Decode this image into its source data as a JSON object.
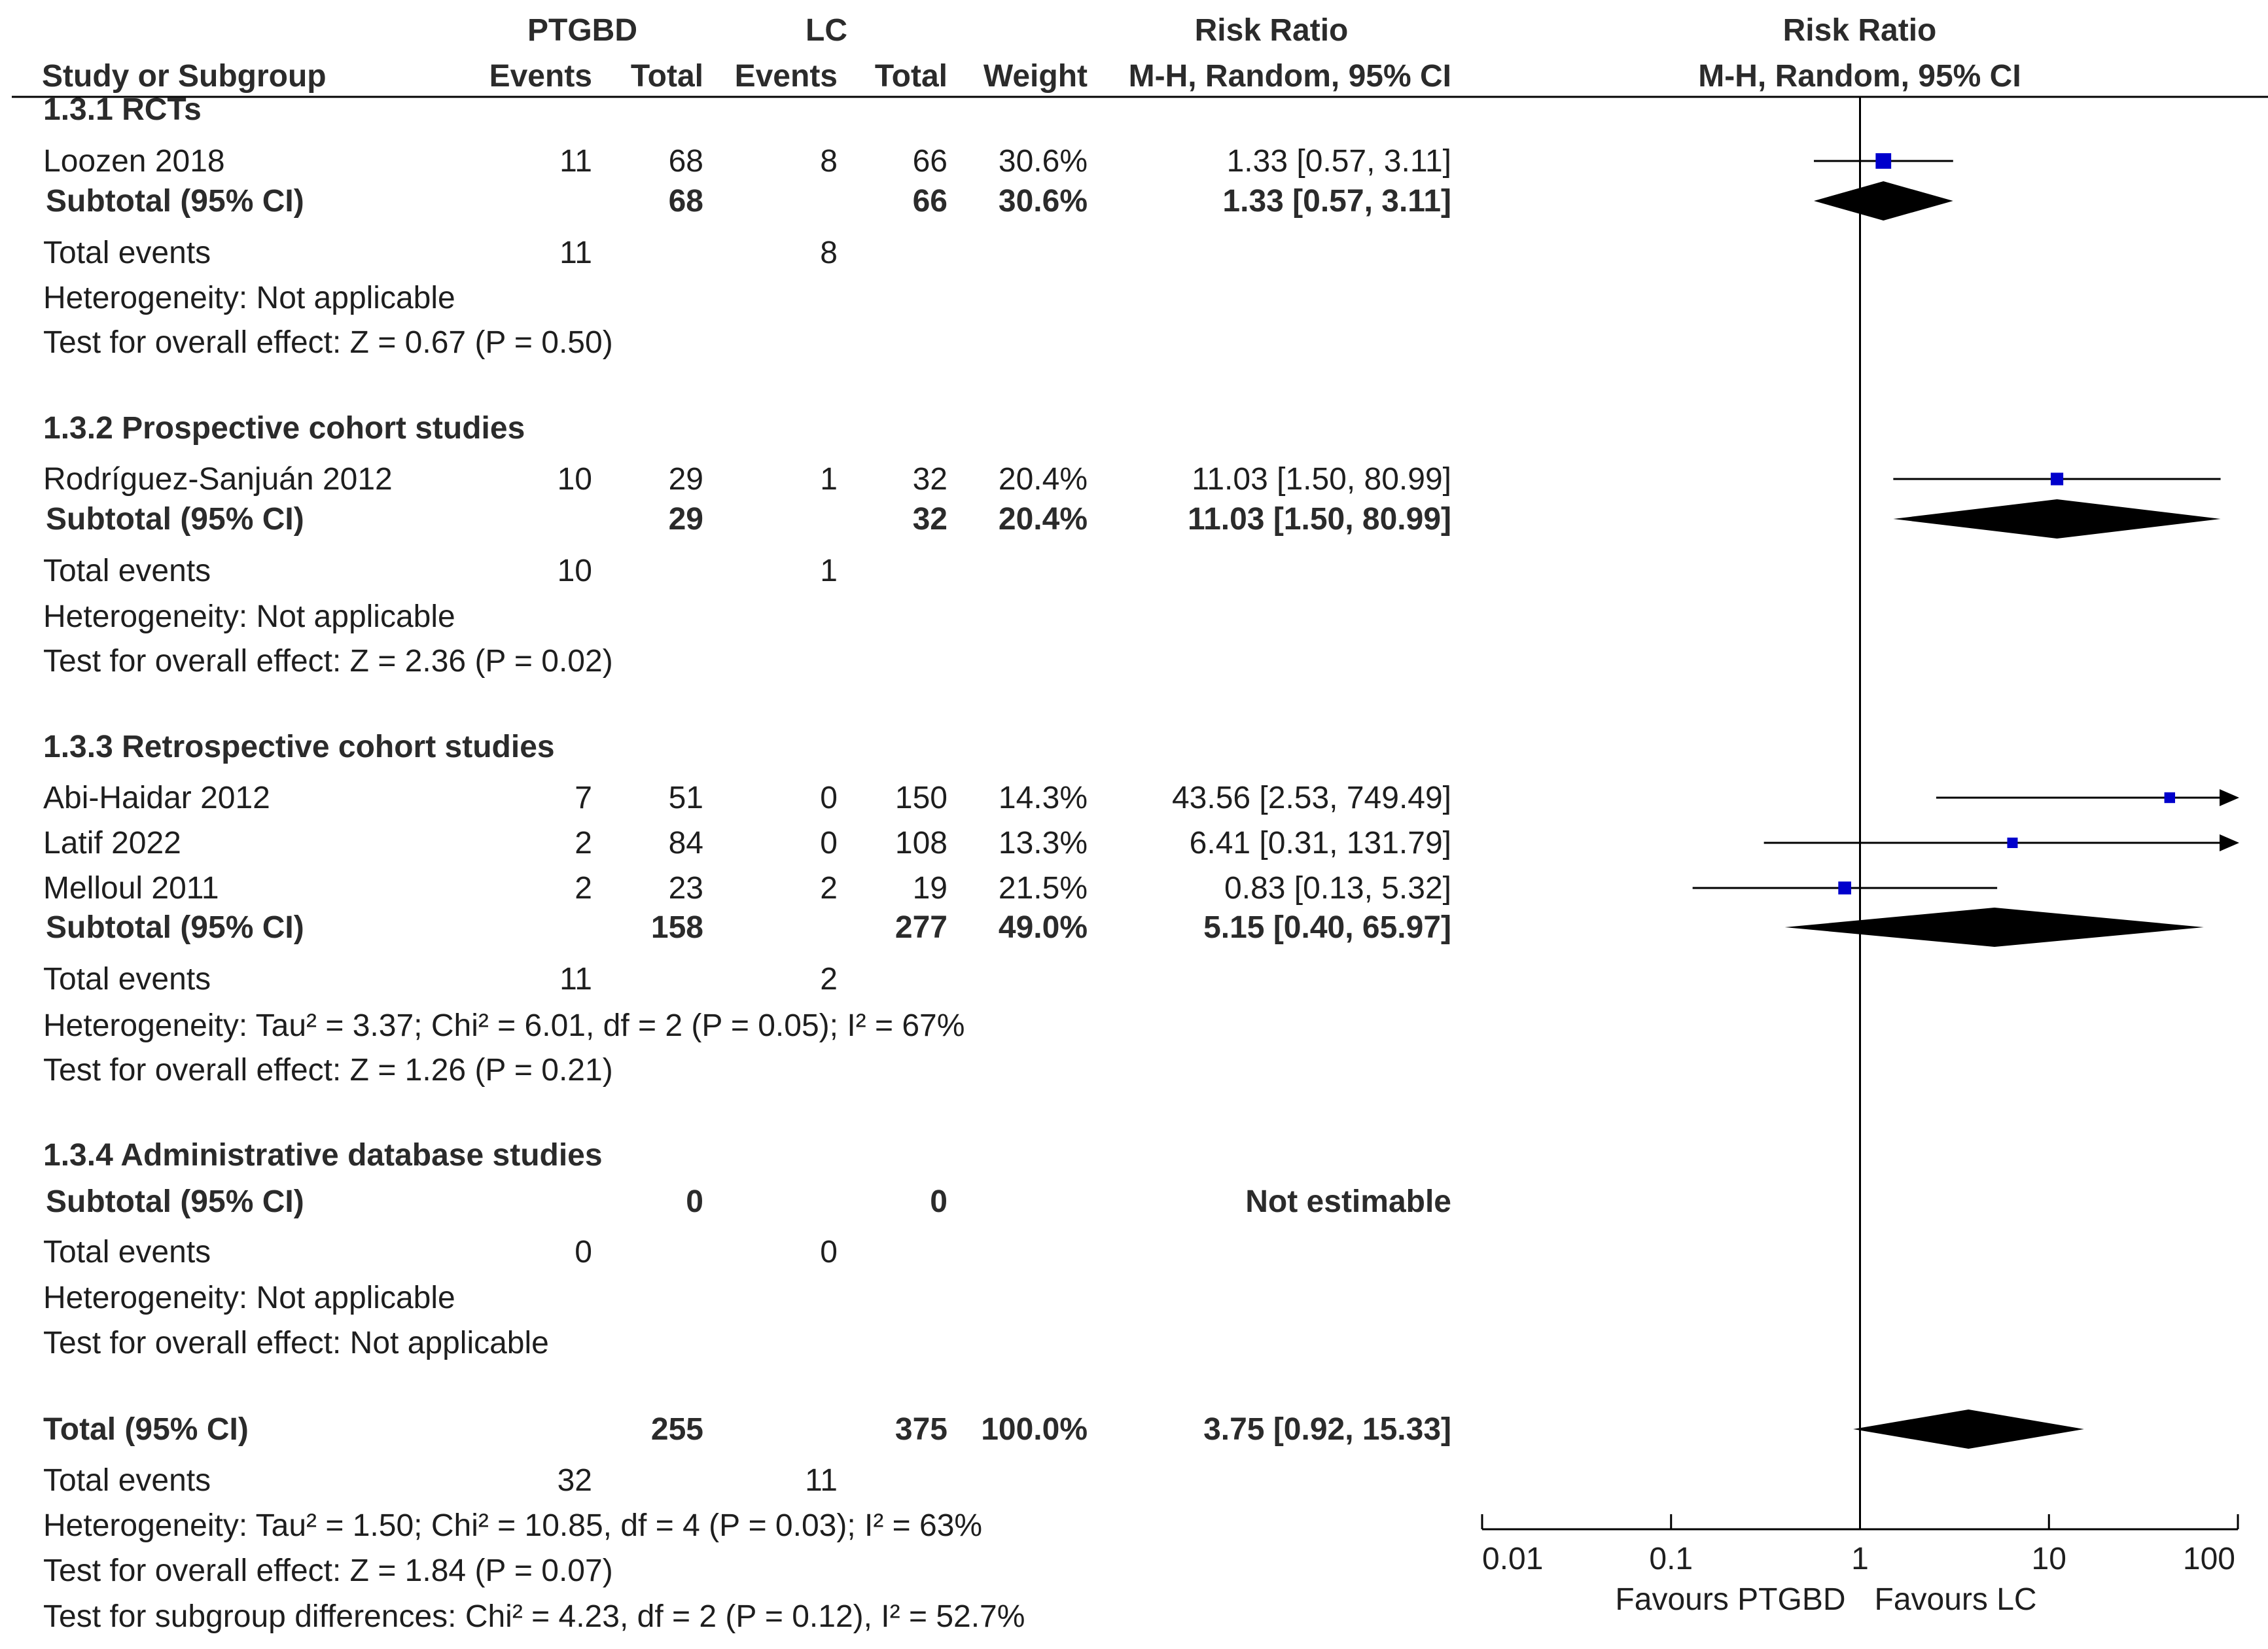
{
  "chart_data": {
    "type": "forest",
    "measure": "Risk Ratio",
    "method": "M-H, Random, 95% CI",
    "scale": "log",
    "x_ticks": [
      0.01,
      0.1,
      1,
      10,
      100
    ],
    "x_tick_labels": [
      "0.01",
      "0.1",
      "1",
      "10",
      "100"
    ],
    "xlim": [
      0.01,
      100
    ],
    "favours_left": "Favours PTGBD",
    "favours_right": "Favours LC",
    "header": {
      "group1": "PTGBD",
      "group2": "LC",
      "rr_col": "Risk Ratio",
      "rr_plot": "Risk Ratio",
      "study": "Study or Subgroup",
      "events": "Events",
      "total": "Total",
      "weight": "Weight",
      "method_col": "M-H, Random, 95% CI",
      "method_plot": "M-H, Random, 95% CI"
    },
    "subgroups": [
      {
        "title": "1.3.1 RCTs",
        "studies": [
          {
            "name": "Loozen 2018",
            "e1": "11",
            "n1": "68",
            "e2": "8",
            "n2": "66",
            "weight": "30.6%",
            "ci_text": "1.33 [0.57, 3.11]",
            "rr": 1.33,
            "lo": 0.57,
            "hi": 3.11
          }
        ],
        "subtotal": {
          "label": "Subtotal (95% CI)",
          "n1": "68",
          "n2": "66",
          "weight": "30.6%",
          "ci_text": "1.33 [0.57, 3.11]",
          "rr": 1.33,
          "lo": 0.57,
          "hi": 3.11
        },
        "total_events": {
          "label": "Total events",
          "e1": "11",
          "e2": "8"
        },
        "heterogeneity": "Heterogeneity: Not applicable",
        "overall": "Test for overall effect: Z = 0.67 (P = 0.50)"
      },
      {
        "title": "1.3.2 Prospective cohort studies",
        "studies": [
          {
            "name": "Rodríguez-Sanjuán 2012",
            "e1": "10",
            "n1": "29",
            "e2": "1",
            "n2": "32",
            "weight": "20.4%",
            "ci_text": "11.03 [1.50, 80.99]",
            "rr": 11.03,
            "lo": 1.5,
            "hi": 80.99
          }
        ],
        "subtotal": {
          "label": "Subtotal (95% CI)",
          "n1": "29",
          "n2": "32",
          "weight": "20.4%",
          "ci_text": "11.03 [1.50, 80.99]",
          "rr": 11.03,
          "lo": 1.5,
          "hi": 80.99
        },
        "total_events": {
          "label": "Total events",
          "e1": "10",
          "e2": "1"
        },
        "heterogeneity": "Heterogeneity: Not applicable",
        "overall": "Test for overall effect: Z = 2.36 (P = 0.02)"
      },
      {
        "title": "1.3.3 Retrospective cohort studies",
        "studies": [
          {
            "name": "Abi-Haidar 2012",
            "e1": "7",
            "n1": "51",
            "e2": "0",
            "n2": "150",
            "weight": "14.3%",
            "ci_text": "43.56 [2.53, 749.49]",
            "rr": 43.56,
            "lo": 2.53,
            "hi": 749.49
          },
          {
            "name": "Latif 2022",
            "e1": "2",
            "n1": "84",
            "e2": "0",
            "n2": "108",
            "weight": "13.3%",
            "ci_text": "6.41 [0.31, 131.79]",
            "rr": 6.41,
            "lo": 0.31,
            "hi": 131.79
          },
          {
            "name": "Melloul 2011",
            "e1": "2",
            "n1": "23",
            "e2": "2",
            "n2": "19",
            "weight": "21.5%",
            "ci_text": "0.83 [0.13, 5.32]",
            "rr": 0.83,
            "lo": 0.13,
            "hi": 5.32
          }
        ],
        "subtotal": {
          "label": "Subtotal (95% CI)",
          "n1": "158",
          "n2": "277",
          "weight": "49.0%",
          "ci_text": "5.15 [0.40, 65.97]",
          "rr": 5.15,
          "lo": 0.4,
          "hi": 65.97
        },
        "total_events": {
          "label": "Total events",
          "e1": "11",
          "e2": "2"
        },
        "heterogeneity": "Heterogeneity: Tau² = 3.37; Chi² = 6.01, df = 2 (P = 0.05); I² = 67%",
        "overall": "Test for overall effect: Z = 1.26 (P = 0.21)"
      },
      {
        "title": "1.3.4 Administrative database studies",
        "studies": [],
        "subtotal": {
          "label": "Subtotal (95% CI)",
          "n1": "0",
          "n2": "0",
          "weight": "",
          "ci_text": "Not estimable",
          "rr": null,
          "lo": null,
          "hi": null
        },
        "total_events": {
          "label": "Total events",
          "e1": "0",
          "e2": "0"
        },
        "heterogeneity": "Heterogeneity: Not applicable",
        "overall": "Test for overall effect: Not applicable"
      }
    ],
    "total": {
      "label": "Total (95% CI)",
      "n1": "255",
      "n2": "375",
      "weight": "100.0%",
      "ci_text": "3.75 [0.92, 15.33]",
      "rr": 3.75,
      "lo": 0.92,
      "hi": 15.33
    },
    "total_events": {
      "label": "Total events",
      "e1": "32",
      "e2": "11"
    },
    "heterogeneity": "Heterogeneity: Tau² = 1.50; Chi² = 10.85, df = 4 (P = 0.03); I² = 63%",
    "overall": "Test for overall effect: Z = 1.84 (P = 0.07)",
    "subgroup_diff": "Test for subgroup differences: Chi² = 4.23, df = 2 (P = 0.12), I² = 52.7%"
  },
  "colors": {
    "text": "#1e1e1e",
    "marker": "#0000cc",
    "diamond": "#000000",
    "line": "#000000"
  }
}
